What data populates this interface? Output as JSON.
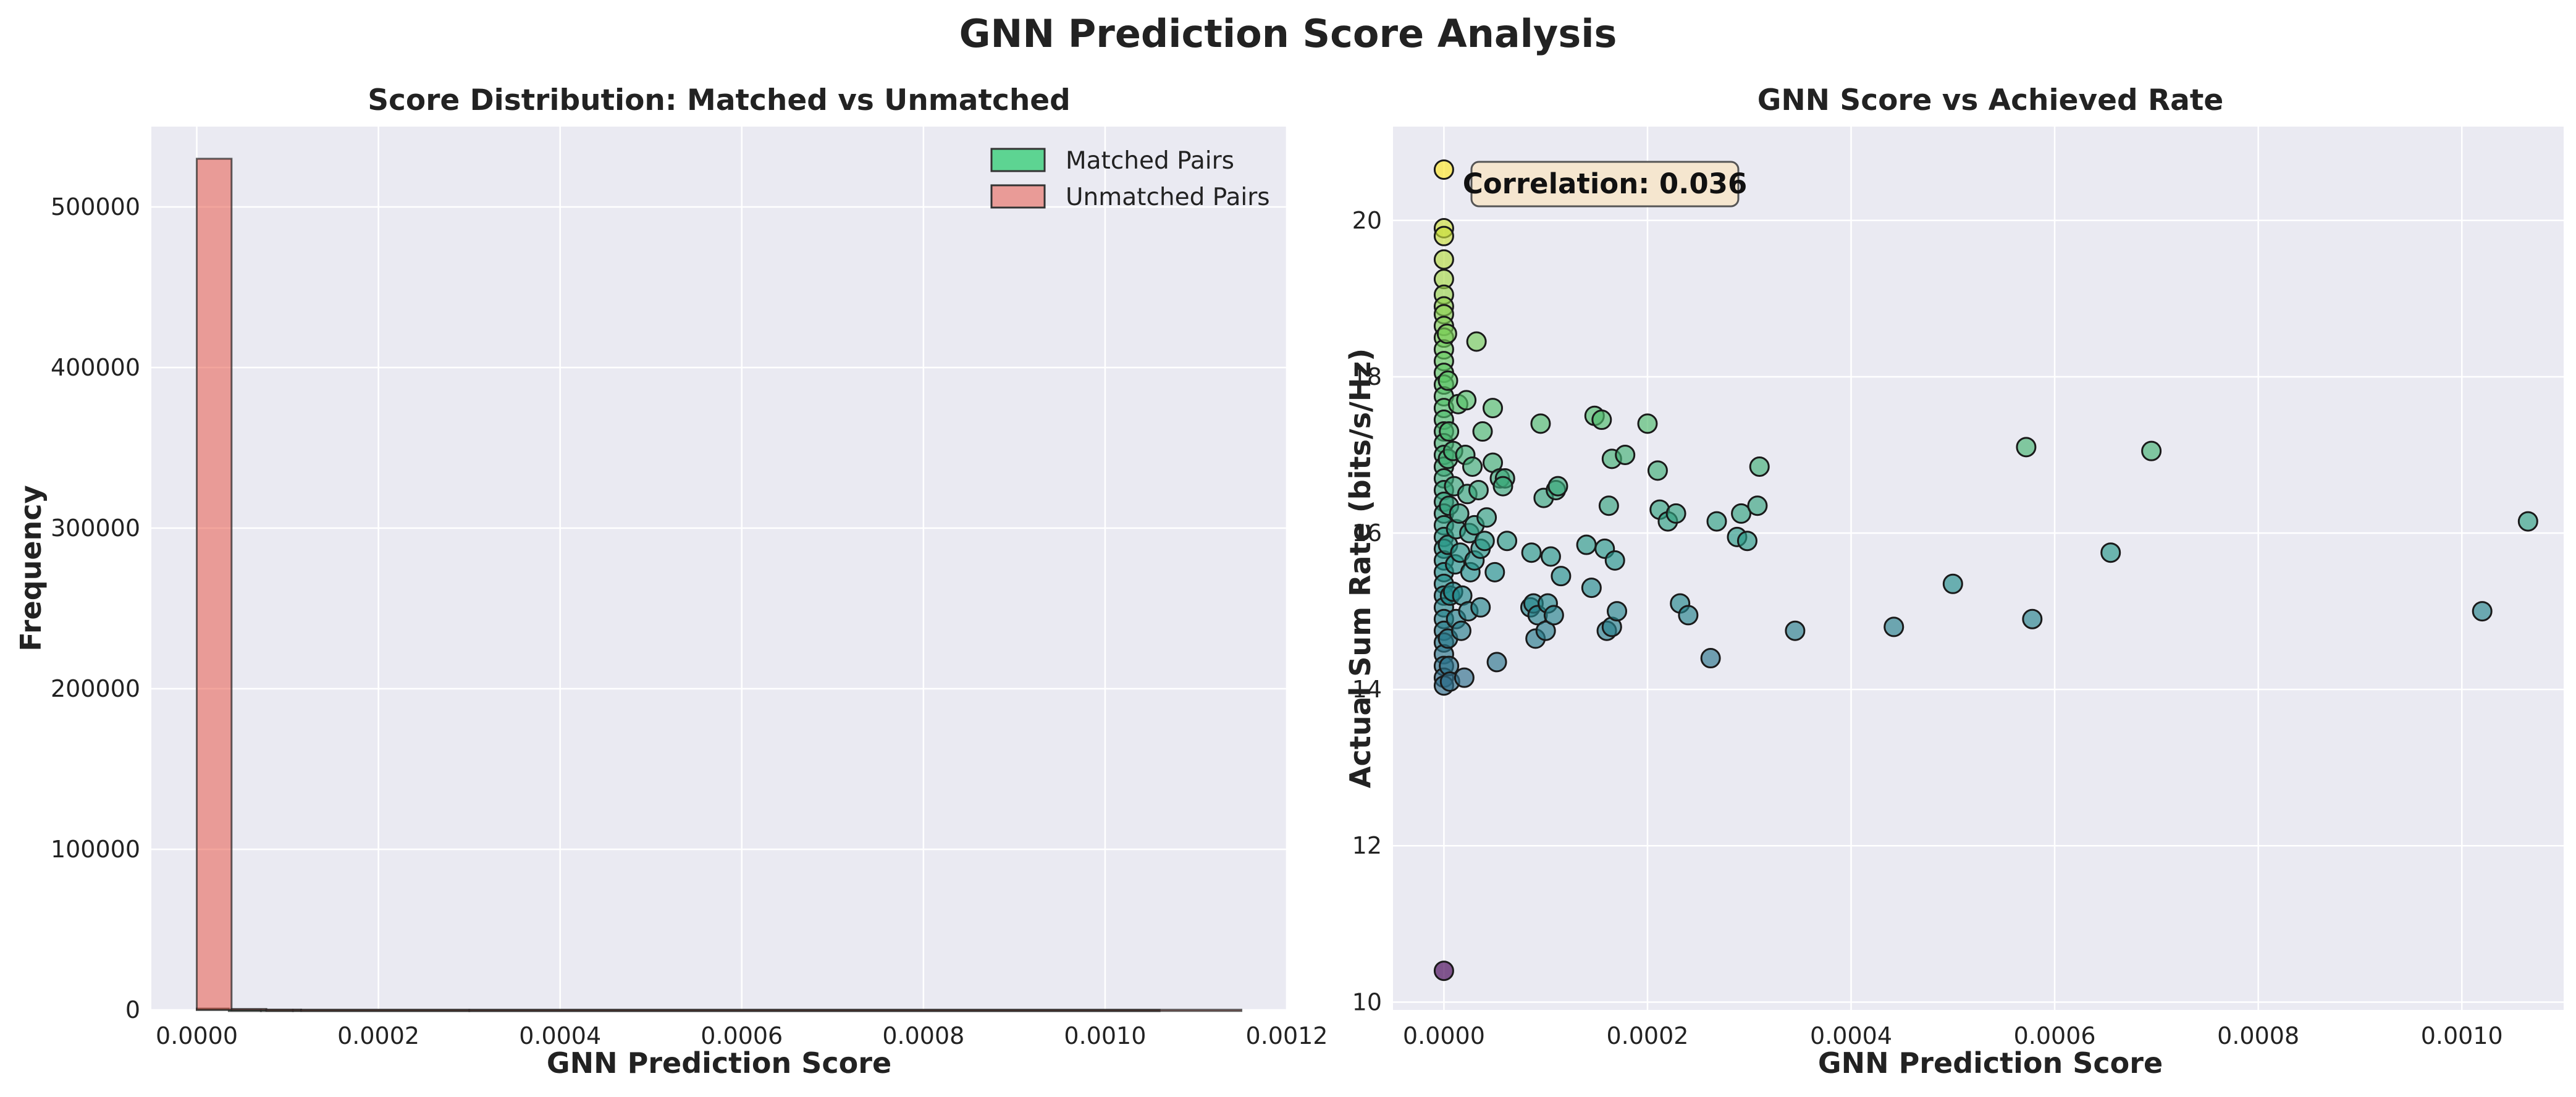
{
  "figure": {
    "title": "GNN Prediction Score Analysis",
    "background_color": "#ffffff",
    "axes_face_color": "#eaeaf2",
    "grid_color": "#ffffff"
  },
  "chart_data": [
    {
      "type": "bar",
      "title": "Score Distribution: Matched vs Unmatched",
      "xlabel": "GNN Prediction Score",
      "ylabel": "Frequency",
      "xlim": [
        -5e-05,
        0.0012
      ],
      "ylim": [
        0,
        550000
      ],
      "xticks": [
        0.0,
        0.0002,
        0.0004,
        0.0006,
        0.0008,
        0.001,
        0.0012
      ],
      "xtick_labels": [
        "0.0000",
        "0.0002",
        "0.0004",
        "0.0006",
        "0.0008",
        "0.0010",
        "0.0012"
      ],
      "yticks": [
        0,
        100000,
        200000,
        300000,
        400000,
        500000
      ],
      "ytick_labels": [
        "0",
        "100000",
        "200000",
        "300000",
        "400000",
        "500000"
      ],
      "grid": true,
      "legend_position": "top-right",
      "bin_width": 3.83e-05,
      "series": [
        {
          "name": "Matched Pairs",
          "color": "#2ecc71",
          "bins": [
            {
              "x0": 0.0,
              "x1": 3.53e-05,
              "count": 800
            },
            {
              "x0": 3.53e-05,
              "x1": 7.06e-05,
              "count": 60
            },
            {
              "x0": 7.06e-05,
              "x1": 0.0001059,
              "count": 30
            },
            {
              "x0": 0.0001059,
              "x1": 0.0003,
              "count": 40
            },
            {
              "x0": 0.0003,
              "x1": 0.00106,
              "count": 20
            }
          ]
        },
        {
          "name": "Unmatched Pairs",
          "color": "#e74c3c",
          "bins": [
            {
              "x0": 0.0,
              "x1": 3.83e-05,
              "count": 530000
            },
            {
              "x0": 3.83e-05,
              "x1": 7.66e-05,
              "count": 600
            },
            {
              "x0": 7.66e-05,
              "x1": 0.0001149,
              "count": 200
            },
            {
              "x0": 0.0001149,
              "x1": 0.00115,
              "count": 100
            }
          ]
        }
      ]
    },
    {
      "type": "scatter",
      "title": "GNN Score vs Achieved Rate",
      "xlabel": "GNN Prediction Score",
      "ylabel": "Actual Sum Rate (bits/s/Hz)",
      "xlim": [
        -5e-05,
        0.0011
      ],
      "ylim": [
        9.9,
        21.2
      ],
      "xticks": [
        0.0,
        0.0002,
        0.0004,
        0.0006,
        0.0008,
        0.001
      ],
      "xtick_labels": [
        "0.0000",
        "0.0002",
        "0.0004",
        "0.0006",
        "0.0008",
        "0.0010"
      ],
      "yticks": [
        10,
        12,
        14,
        16,
        18,
        20
      ],
      "ytick_labels": [
        "10",
        "12",
        "14",
        "16",
        "18",
        "20"
      ],
      "grid": true,
      "colormap": "viridis",
      "color_range": [
        10.4,
        20.65
      ],
      "annotation": "Correlation: 0.036",
      "points": [
        [
          0.0,
          20.65
        ],
        [
          0.0,
          10.4
        ],
        [
          0.0,
          19.9
        ],
        [
          0.0,
          19.8
        ],
        [
          0.0,
          19.5
        ],
        [
          0.0,
          19.25
        ],
        [
          0.0,
          19.05
        ],
        [
          0.0,
          18.9
        ],
        [
          0.0,
          18.8
        ],
        [
          0.0,
          18.65
        ],
        [
          0.0,
          18.5
        ],
        [
          0.0,
          18.35
        ],
        [
          0.0,
          18.2
        ],
        [
          0.0,
          18.05
        ],
        [
          0.0,
          17.9
        ],
        [
          0.0,
          17.75
        ],
        [
          0.0,
          17.6
        ],
        [
          0.0,
          17.45
        ],
        [
          0.0,
          17.3
        ],
        [
          0.0,
          17.15
        ],
        [
          0.0,
          17.0
        ],
        [
          0.0,
          16.85
        ],
        [
          0.0,
          16.7
        ],
        [
          0.0,
          16.55
        ],
        [
          0.0,
          16.4
        ],
        [
          0.0,
          16.25
        ],
        [
          0.0,
          16.1
        ],
        [
          0.0,
          15.95
        ],
        [
          0.0,
          15.8
        ],
        [
          0.0,
          15.65
        ],
        [
          0.0,
          15.5
        ],
        [
          0.0,
          15.35
        ],
        [
          0.0,
          15.2
        ],
        [
          0.0,
          15.05
        ],
        [
          0.0,
          14.9
        ],
        [
          0.0,
          14.75
        ],
        [
          0.0,
          14.6
        ],
        [
          0.0,
          14.45
        ],
        [
          0.0,
          14.3
        ],
        [
          0.0,
          14.15
        ],
        [
          0.0,
          14.05
        ],
        [
          3e-06,
          18.55
        ],
        [
          4e-06,
          17.95
        ],
        [
          5e-06,
          17.3
        ],
        [
          4e-06,
          16.95
        ],
        [
          5e-06,
          16.35
        ],
        [
          4e-06,
          15.85
        ],
        [
          6e-06,
          15.2
        ],
        [
          4e-06,
          14.65
        ],
        [
          5e-06,
          14.3
        ],
        [
          6e-06,
          14.1
        ],
        [
          9e-06,
          17.05
        ],
        [
          1e-05,
          16.6
        ],
        [
          1.2e-05,
          16.05
        ],
        [
          1.1e-05,
          15.6
        ],
        [
          9e-06,
          15.25
        ],
        [
          1.2e-05,
          14.9
        ],
        [
          1.4e-05,
          17.65
        ],
        [
          1.5e-05,
          16.25
        ],
        [
          1.6e-05,
          15.75
        ],
        [
          1.8e-05,
          15.2
        ],
        [
          1.7e-05,
          14.75
        ],
        [
          2e-05,
          14.15
        ],
        [
          2.2e-05,
          17.7
        ],
        [
          2.1e-05,
          17.0
        ],
        [
          2.3e-05,
          16.5
        ],
        [
          2.5e-05,
          16.0
        ],
        [
          2.6e-05,
          15.5
        ],
        [
          2.4e-05,
          15.0
        ],
        [
          2.8e-05,
          16.85
        ],
        [
          3e-05,
          16.1
        ],
        [
          3e-05,
          15.65
        ],
        [
          3.2e-05,
          18.45
        ],
        [
          3.4e-05,
          16.55
        ],
        [
          3.6e-05,
          15.8
        ],
        [
          3.8e-05,
          17.3
        ],
        [
          4e-05,
          15.9
        ],
        [
          4.2e-05,
          16.2
        ],
        [
          3.6e-05,
          15.05
        ],
        [
          4.8e-05,
          16.9
        ],
        [
          4.8e-05,
          17.6
        ],
        [
          5e-05,
          15.5
        ],
        [
          5.2e-05,
          14.35
        ],
        [
          5.5e-05,
          16.7
        ],
        [
          6e-05,
          16.7
        ],
        [
          5.8e-05,
          16.6
        ],
        [
          6.2e-05,
          15.9
        ],
        [
          8.5e-05,
          15.05
        ],
        [
          8.6e-05,
          15.75
        ],
        [
          8.8e-05,
          15.1
        ],
        [
          9.2e-05,
          14.95
        ],
        [
          9.5e-05,
          17.4
        ],
        [
          9e-05,
          14.65
        ],
        [
          9.8e-05,
          16.45
        ],
        [
          0.0001,
          14.75
        ],
        [
          0.000102,
          15.1
        ],
        [
          0.000105,
          15.7
        ],
        [
          0.000108,
          14.95
        ],
        [
          0.00011,
          16.55
        ],
        [
          0.000112,
          16.6
        ],
        [
          0.000115,
          15.45
        ],
        [
          0.00014,
          15.85
        ],
        [
          0.000145,
          15.3
        ],
        [
          0.000148,
          17.5
        ],
        [
          0.000155,
          17.45
        ],
        [
          0.000158,
          15.8
        ],
        [
          0.00016,
          14.75
        ],
        [
          0.000162,
          16.35
        ],
        [
          0.000165,
          16.95
        ],
        [
          0.000165,
          14.8
        ],
        [
          0.000168,
          15.65
        ],
        [
          0.00017,
          15.0
        ],
        [
          0.000178,
          17.0
        ],
        [
          0.0002,
          17.4
        ],
        [
          0.00021,
          16.8
        ],
        [
          0.000212,
          16.3
        ],
        [
          0.00022,
          16.15
        ],
        [
          0.000228,
          16.25
        ],
        [
          0.000232,
          15.1
        ],
        [
          0.00024,
          14.95
        ],
        [
          0.000262,
          14.4
        ],
        [
          0.000268,
          16.15
        ],
        [
          0.000288,
          15.95
        ],
        [
          0.000292,
          16.25
        ],
        [
          0.000298,
          15.9
        ],
        [
          0.000308,
          16.35
        ],
        [
          0.00031,
          16.85
        ],
        [
          0.000345,
          14.75
        ],
        [
          0.000442,
          14.8
        ],
        [
          0.0005,
          15.35
        ],
        [
          0.000572,
          17.1
        ],
        [
          0.000578,
          14.9
        ],
        [
          0.000655,
          15.75
        ],
        [
          0.000695,
          17.05
        ],
        [
          0.00102,
          15.0
        ],
        [
          0.001065,
          16.15
        ]
      ]
    }
  ]
}
